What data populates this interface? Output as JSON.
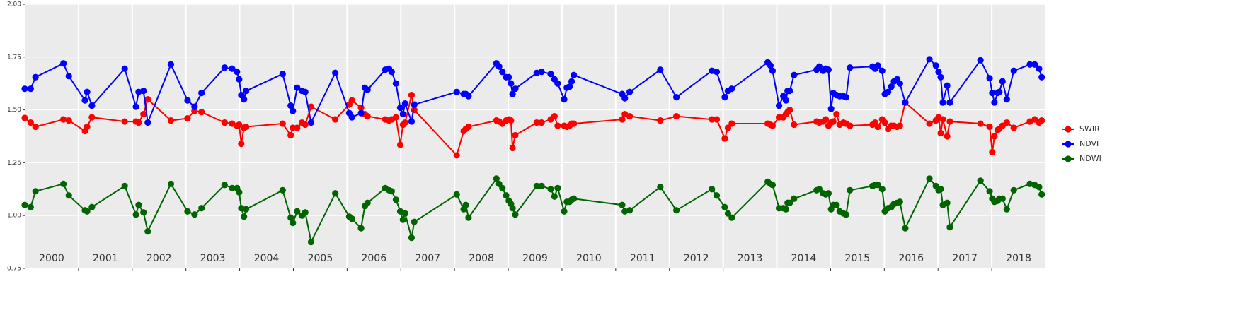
{
  "chart_data": {
    "type": "line",
    "x": [
      2000.0,
      2000.11,
      2000.2,
      2000.72,
      2000.82,
      2001.12,
      2001.16,
      2001.25,
      2001.86,
      2002.07,
      2002.12,
      2002.21,
      2002.29,
      2002.72,
      2003.03,
      2003.16,
      2003.29,
      2003.72,
      2003.86,
      2003.95,
      2003.99,
      2004.03,
      2004.08,
      2004.12,
      2004.8,
      2004.95,
      2004.99,
      2005.07,
      2005.16,
      2005.22,
      2005.33,
      2005.78,
      2006.04,
      2006.09,
      2006.26,
      2006.33,
      2006.38,
      2006.71,
      2006.78,
      2006.83,
      2006.91,
      2006.99,
      2007.04,
      2007.08,
      2007.2,
      2007.25,
      2008.04,
      2008.17,
      2008.21,
      2008.26,
      2008.78,
      2008.83,
      2008.89,
      2008.96,
      2009.01,
      2009.05,
      2009.08,
      2009.13,
      2009.53,
      2009.62,
      2009.79,
      2009.86,
      2009.92,
      2010.04,
      2010.09,
      2010.14,
      2010.18,
      2010.22,
      2011.12,
      2011.17,
      2011.26,
      2011.83,
      2012.13,
      2012.79,
      2012.88,
      2013.03,
      2013.09,
      2013.16,
      2013.83,
      2013.88,
      2013.92,
      2014.04,
      2014.12,
      2014.17,
      2014.2,
      2014.24,
      2014.32,
      2014.74,
      2014.79,
      2014.86,
      2014.91,
      2014.96,
      2015.01,
      2015.05,
      2015.11,
      2015.17,
      2015.24,
      2015.29,
      2015.36,
      2015.78,
      2015.83,
      2015.88,
      2015.96,
      2016.01,
      2016.07,
      2016.13,
      2016.18,
      2016.24,
      2016.29,
      2016.39,
      2016.84,
      2016.96,
      2017.01,
      2017.05,
      2017.09,
      2017.17,
      2017.22,
      2017.79,
      2017.96,
      2018.01,
      2018.05,
      2018.11,
      2018.14,
      2018.2,
      2018.28,
      2018.41,
      2018.71,
      2018.8,
      2018.88,
      2018.93
    ],
    "series": [
      {
        "name": "SWIR",
        "color": "#ff0000",
        "values": [
          1.462,
          1.44,
          1.42,
          1.455,
          1.45,
          1.4,
          1.42,
          1.465,
          1.445,
          1.445,
          1.44,
          1.48,
          1.55,
          1.45,
          1.46,
          1.495,
          1.49,
          1.44,
          1.435,
          1.425,
          1.43,
          1.34,
          1.415,
          1.42,
          1.435,
          1.38,
          1.415,
          1.415,
          1.44,
          1.43,
          1.515,
          1.455,
          1.525,
          1.545,
          1.51,
          1.48,
          1.47,
          1.455,
          1.45,
          1.455,
          1.465,
          1.335,
          1.43,
          1.44,
          1.57,
          1.5,
          1.285,
          1.4,
          1.41,
          1.42,
          1.45,
          1.445,
          1.435,
          1.45,
          1.455,
          1.45,
          1.32,
          1.38,
          1.44,
          1.44,
          1.455,
          1.47,
          1.425,
          1.425,
          1.42,
          1.425,
          1.435,
          1.435,
          1.455,
          1.48,
          1.47,
          1.45,
          1.47,
          1.455,
          1.455,
          1.365,
          1.415,
          1.435,
          1.435,
          1.43,
          1.425,
          1.465,
          1.465,
          1.48,
          1.49,
          1.5,
          1.43,
          1.445,
          1.44,
          1.445,
          1.455,
          1.425,
          1.44,
          1.445,
          1.48,
          1.43,
          1.44,
          1.435,
          1.425,
          1.43,
          1.44,
          1.42,
          1.455,
          1.44,
          1.41,
          1.425,
          1.425,
          1.42,
          1.425,
          1.535,
          1.435,
          1.45,
          1.465,
          1.39,
          1.455,
          1.375,
          1.445,
          1.435,
          1.42,
          1.3,
          1.375,
          1.405,
          1.41,
          1.425,
          1.44,
          1.415,
          1.445,
          1.455,
          1.44,
          1.45
        ]
      },
      {
        "name": "NDVI",
        "color": "#0000ff",
        "values": [
          1.6,
          1.6,
          1.655,
          1.72,
          1.66,
          1.545,
          1.585,
          1.52,
          1.695,
          1.515,
          1.585,
          1.59,
          1.44,
          1.715,
          1.545,
          1.515,
          1.58,
          1.7,
          1.695,
          1.68,
          1.645,
          1.57,
          1.55,
          1.59,
          1.67,
          1.52,
          1.495,
          1.605,
          1.59,
          1.585,
          1.44,
          1.675,
          1.485,
          1.465,
          1.485,
          1.605,
          1.595,
          1.69,
          1.695,
          1.68,
          1.625,
          1.51,
          1.48,
          1.53,
          1.445,
          1.525,
          1.585,
          1.575,
          1.575,
          1.565,
          1.72,
          1.705,
          1.68,
          1.655,
          1.655,
          1.625,
          1.575,
          1.6,
          1.675,
          1.68,
          1.67,
          1.645,
          1.625,
          1.55,
          1.605,
          1.61,
          1.635,
          1.665,
          1.575,
          1.555,
          1.585,
          1.69,
          1.56,
          1.685,
          1.68,
          1.56,
          1.59,
          1.6,
          1.725,
          1.71,
          1.685,
          1.52,
          1.565,
          1.545,
          1.59,
          1.59,
          1.665,
          1.69,
          1.705,
          1.685,
          1.695,
          1.69,
          1.505,
          1.58,
          1.57,
          1.565,
          1.565,
          1.56,
          1.7,
          1.705,
          1.695,
          1.71,
          1.685,
          1.575,
          1.585,
          1.61,
          1.635,
          1.645,
          1.625,
          1.535,
          1.74,
          1.71,
          1.68,
          1.655,
          1.535,
          1.615,
          1.535,
          1.735,
          1.65,
          1.58,
          1.535,
          1.58,
          1.585,
          1.635,
          1.55,
          1.685,
          1.715,
          1.715,
          1.695,
          1.655
        ]
      },
      {
        "name": "NDWI",
        "color": "#006400",
        "values": [
          1.05,
          1.04,
          1.115,
          1.15,
          1.095,
          1.025,
          1.02,
          1.04,
          1.14,
          1.005,
          1.05,
          1.015,
          0.925,
          1.15,
          1.02,
          1.005,
          1.035,
          1.145,
          1.13,
          1.13,
          1.11,
          1.035,
          0.995,
          1.03,
          1.12,
          0.99,
          0.965,
          1.02,
          1.0,
          1.015,
          0.875,
          1.105,
          0.995,
          0.985,
          0.94,
          1.045,
          1.06,
          1.13,
          1.12,
          1.115,
          1.075,
          1.02,
          0.98,
          1.01,
          0.895,
          0.97,
          1.1,
          1.03,
          1.05,
          0.99,
          1.175,
          1.15,
          1.13,
          1.095,
          1.07,
          1.055,
          1.035,
          1.005,
          1.14,
          1.14,
          1.125,
          1.09,
          1.13,
          1.02,
          1.065,
          1.065,
          1.075,
          1.08,
          1.05,
          1.02,
          1.025,
          1.135,
          1.025,
          1.125,
          1.095,
          1.04,
          1.01,
          0.99,
          1.16,
          1.15,
          1.145,
          1.035,
          1.035,
          1.03,
          1.06,
          1.06,
          1.08,
          1.12,
          1.125,
          1.105,
          1.1,
          1.105,
          1.03,
          1.05,
          1.05,
          1.02,
          1.01,
          1.005,
          1.12,
          1.14,
          1.145,
          1.145,
          1.125,
          1.02,
          1.035,
          1.04,
          1.055,
          1.06,
          1.065,
          0.94,
          1.175,
          1.14,
          1.12,
          1.125,
          1.05,
          1.06,
          0.945,
          1.165,
          1.115,
          1.08,
          1.065,
          1.07,
          1.08,
          1.08,
          1.03,
          1.12,
          1.15,
          1.145,
          1.135,
          1.1
        ]
      }
    ],
    "xlim": [
      2000,
      2019
    ],
    "xticks": [
      {
        "value": 2000.5,
        "label": "2000"
      },
      {
        "value": 2001.5,
        "label": "2001"
      },
      {
        "value": 2002.5,
        "label": "2002"
      },
      {
        "value": 2003.5,
        "label": "2003"
      },
      {
        "value": 2004.5,
        "label": "2004"
      },
      {
        "value": 2005.5,
        "label": "2005"
      },
      {
        "value": 2006.5,
        "label": "2006"
      },
      {
        "value": 2007.5,
        "label": "2007"
      },
      {
        "value": 2008.5,
        "label": "2008"
      },
      {
        "value": 2009.5,
        "label": "2009"
      },
      {
        "value": 2010.5,
        "label": "2010"
      },
      {
        "value": 2011.5,
        "label": "2011"
      },
      {
        "value": 2012.5,
        "label": "2012"
      },
      {
        "value": 2013.5,
        "label": "2013"
      },
      {
        "value": 2014.5,
        "label": "2014"
      },
      {
        "value": 2015.5,
        "label": "2015"
      },
      {
        "value": 2016.5,
        "label": "2016"
      },
      {
        "value": 2017.5,
        "label": "2017"
      },
      {
        "value": 2018.5,
        "label": "2018"
      }
    ],
    "xgrid": [
      2001,
      2002,
      2003,
      2004,
      2005,
      2006,
      2007,
      2008,
      2009,
      2010,
      2011,
      2012,
      2013,
      2014,
      2015,
      2016,
      2017,
      2018
    ],
    "ylim": [
      0.75,
      2.0
    ],
    "yticks": [
      0.75,
      {
        "value": 1.0,
        "label": "1.00"
      },
      1.25,
      {
        "value": 1.5,
        "label": "1.50"
      },
      1.75,
      {
        "value": 2.0,
        "label": "2.00"
      }
    ],
    "grid": true,
    "legend": "right"
  }
}
